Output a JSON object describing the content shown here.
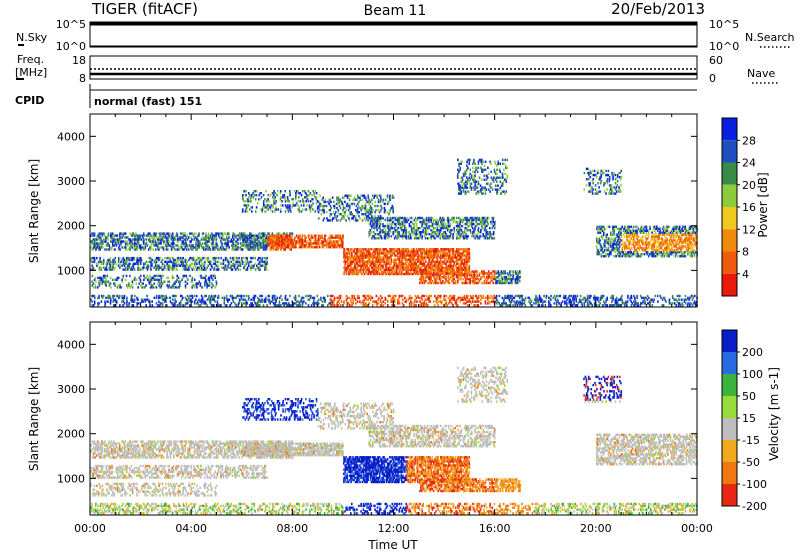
{
  "header": {
    "radar": "TIGER (fitACF)",
    "beam": "Beam 11",
    "date": "20/Feb/2013"
  },
  "top_panels": {
    "nsky_label": "N.Sky",
    "nsky_ticks": [
      "10^5",
      "10^0"
    ],
    "nsearch_label": "N.Search",
    "nsearch_ticks": [
      "10^5",
      "10^0"
    ],
    "freq_label_1": "Freq.",
    "freq_label_2": "[MHz]",
    "freq_ticks": [
      "18",
      "8"
    ],
    "nave_label": "Nave",
    "nave_ticks": [
      "60",
      "0"
    ],
    "cpid_label": "CPID",
    "cpid_value": "normal (fast) 151"
  },
  "chart_data": [
    {
      "type": "heatmap",
      "name": "power-panel",
      "ylabel": "Slant Range [km]",
      "xlabel": "",
      "x_tick_labels": [],
      "y_tick_labels": [
        "1000",
        "2000",
        "3000",
        "4000"
      ],
      "ylim": [
        180,
        4500
      ],
      "xlim_hours": [
        0,
        24
      ],
      "colorbar": {
        "label": "Power [dB]",
        "tick_labels": [
          "4",
          "8",
          "12",
          "16",
          "20",
          "24",
          "28"
        ],
        "colors": [
          "#0a1ee0",
          "#1f4fbf",
          "#3a8a4a",
          "#8ccc3c",
          "#f0c81e",
          "#f08a0a",
          "#f05a0a",
          "#e81a0a"
        ]
      }
    },
    {
      "type": "heatmap",
      "name": "velocity-panel",
      "ylabel": "Slant Range [km]",
      "xlabel": "Time UT",
      "x_tick_labels": [
        "00:00",
        "04:00",
        "08:00",
        "12:00",
        "16:00",
        "20:00",
        "00:00"
      ],
      "y_tick_labels": [
        "1000",
        "2000",
        "3000",
        "4000"
      ],
      "ylim": [
        180,
        4500
      ],
      "xlim_hours": [
        0,
        24
      ],
      "colorbar": {
        "label": "Velocity [m s-1]",
        "tick_labels": [
          "200",
          "100",
          "50",
          "15",
          "-15",
          "-50",
          "-100",
          "-200"
        ],
        "colors": [
          "#0a1ec8",
          "#2a6ae0",
          "#3cb43c",
          "#96dc3c",
          "#bdbdbd",
          "#f0aa1e",
          "#f07814",
          "#e82814"
        ]
      }
    }
  ]
}
